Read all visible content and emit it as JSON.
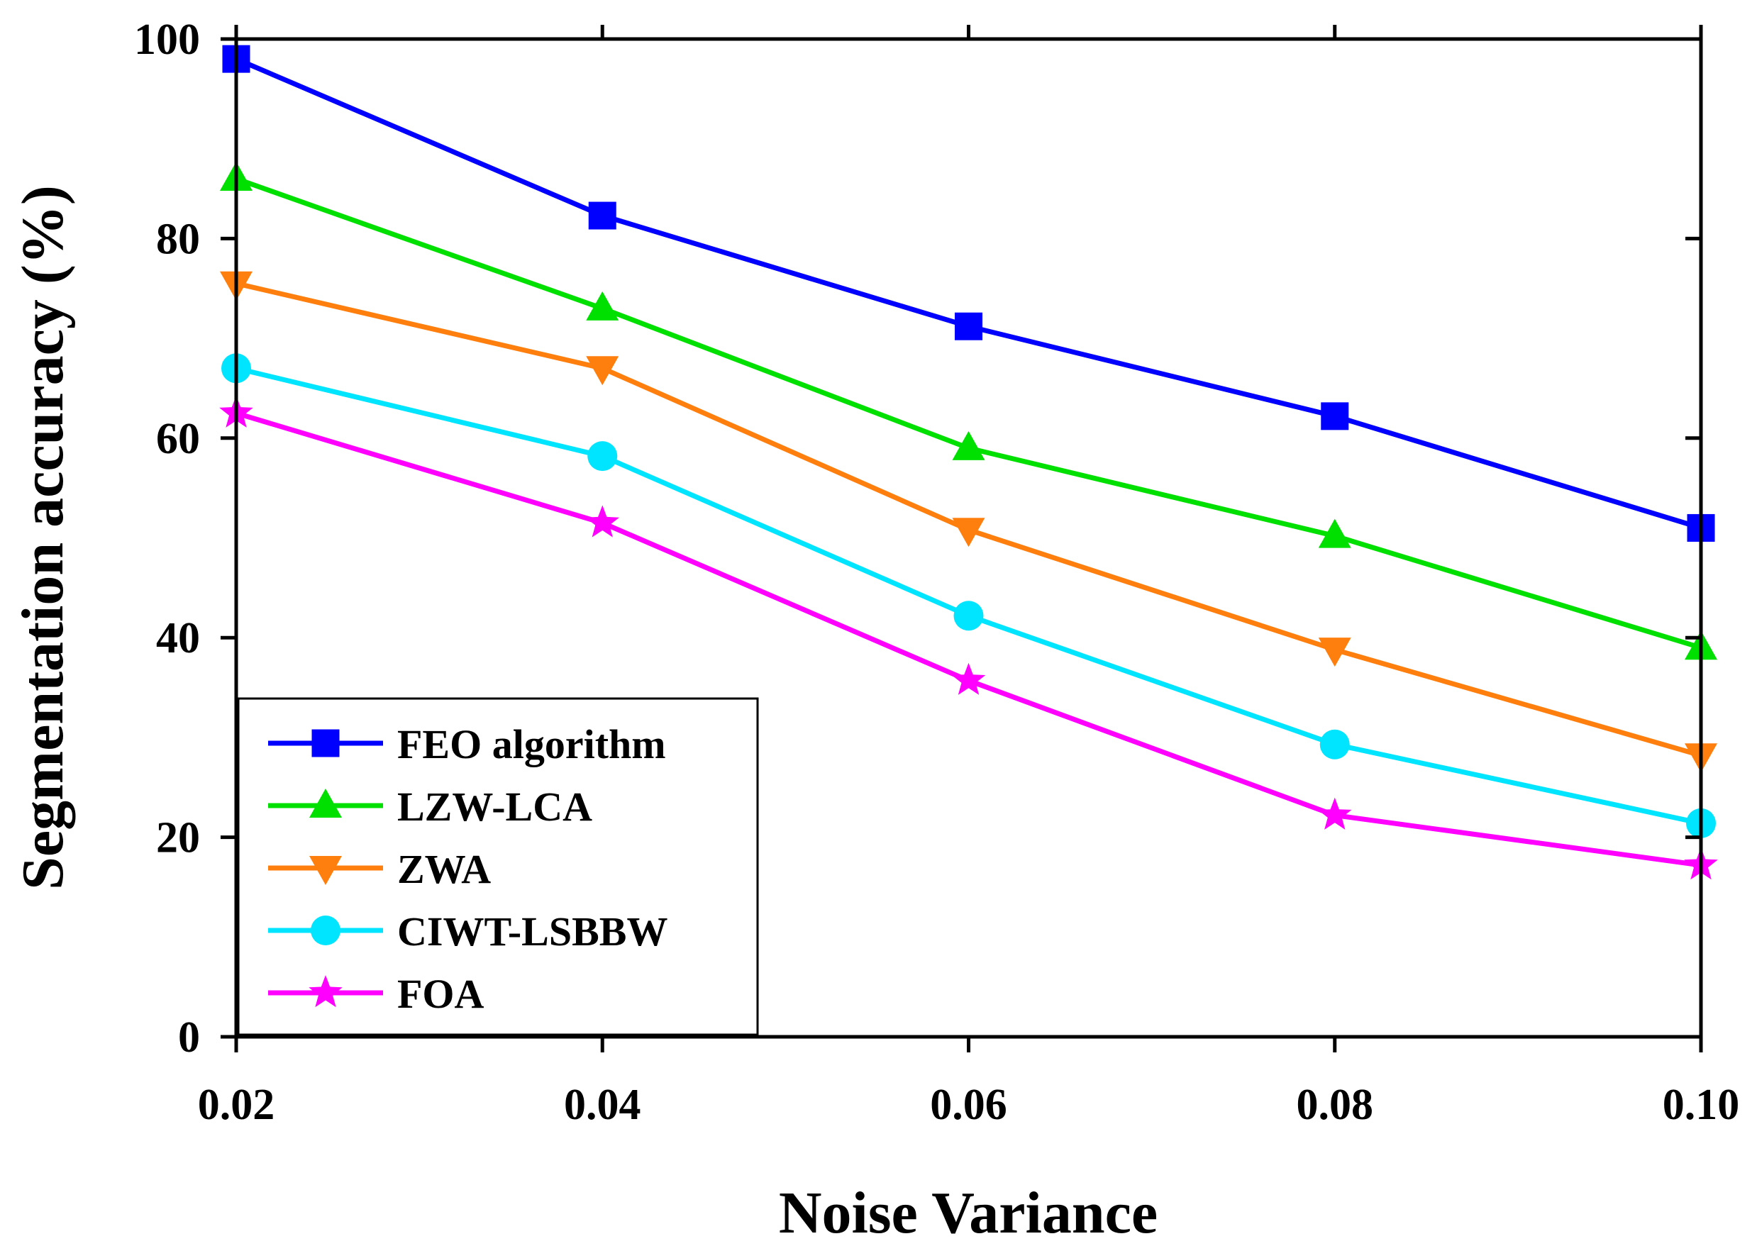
{
  "chart_data": {
    "type": "line",
    "title": "",
    "xlabel": "Noise Variance",
    "ylabel": "Segmentation accuracy (%)",
    "x": [
      0.02,
      0.04,
      0.06,
      0.08,
      0.1
    ],
    "x_tick_labels": [
      "0.02",
      "0.04",
      "0.06",
      "0.08",
      "0.10"
    ],
    "y_tick_labels": [
      "0",
      "20",
      "40",
      "60",
      "80",
      "100"
    ],
    "xlim": [
      0.02,
      0.1
    ],
    "ylim": [
      0,
      100
    ],
    "grid": false,
    "legend_position": "bottom-left",
    "series": [
      {
        "name": "FEO algorithm",
        "marker": "square",
        "color": "#0000ff",
        "values": [
          98.0,
          82.3,
          71.2,
          62.2,
          51.0
        ]
      },
      {
        "name": "LZW-LCA",
        "marker": "triangle-up",
        "color": "#00e000",
        "values": [
          86.0,
          73.0,
          59.0,
          50.2,
          39.0
        ]
      },
      {
        "name": "ZWA",
        "marker": "triangle-down",
        "color": "#ff7f0e",
        "values": [
          75.5,
          67.0,
          50.8,
          38.8,
          28.2
        ]
      },
      {
        "name": "CIWT-LSBBW",
        "marker": "circle",
        "color": "#00e5ff",
        "values": [
          67.0,
          58.2,
          42.2,
          29.3,
          21.4
        ]
      },
      {
        "name": "FOA",
        "marker": "star",
        "color": "#ff00ff",
        "values": [
          62.5,
          51.5,
          35.7,
          22.2,
          17.2
        ]
      }
    ]
  }
}
